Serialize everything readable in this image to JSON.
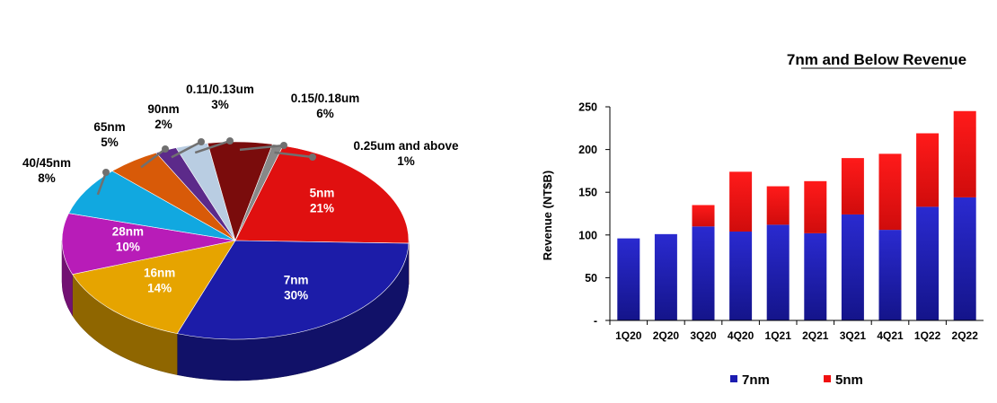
{
  "chart_data": [
    {
      "type": "pie",
      "slices": [
        {
          "label": "5nm",
          "value": 21,
          "value_label": "21%",
          "color": "#e01010"
        },
        {
          "label": "7nm",
          "value": 30,
          "value_label": "30%",
          "color": "#1c1ca8"
        },
        {
          "label": "16nm",
          "value": 14,
          "value_label": "14%",
          "color": "#e6a400"
        },
        {
          "label": "28nm",
          "value": 10,
          "value_label": "10%",
          "color": "#b81cb8"
        },
        {
          "label": "40/45nm",
          "value": 8,
          "value_label": "8%",
          "color": "#11a8e0"
        },
        {
          "label": "65nm",
          "value": 5,
          "value_label": "5%",
          "color": "#d85a08"
        },
        {
          "label": "90nm",
          "value": 2,
          "value_label": "2%",
          "color": "#5c2a8a"
        },
        {
          "label": "0.11/0.13um",
          "value": 3,
          "value_label": "3%",
          "color": "#b9cde2"
        },
        {
          "label": "0.15/0.18um",
          "value": 6,
          "value_label": "6%",
          "color": "#7a0c0c"
        },
        {
          "label": "0.25um and above",
          "value": 1,
          "value_label": "1%",
          "color": "#888888"
        }
      ]
    },
    {
      "type": "bar",
      "stacked": true,
      "title": "7nm and Below Revenue",
      "ylabel": "Revenue (NT$B)",
      "xlabel": "",
      "ylim": [
        0,
        250
      ],
      "yticks": [
        0,
        50,
        100,
        150,
        200,
        250
      ],
      "ytick_labels": [
        "-",
        "50",
        "100",
        "150",
        "200",
        "250"
      ],
      "categories": [
        "1Q20",
        "2Q20",
        "3Q20",
        "4Q20",
        "1Q21",
        "2Q21",
        "3Q21",
        "4Q21",
        "1Q22",
        "2Q22"
      ],
      "series": [
        {
          "name": "7nm",
          "color": "#1c1cb0",
          "values": [
            96,
            101,
            110,
            104,
            112,
            102,
            124,
            106,
            133,
            144
          ]
        },
        {
          "name": "5nm",
          "color": "#f01010",
          "values": [
            0,
            0,
            25,
            70,
            45,
            61,
            66,
            89,
            86,
            101
          ]
        }
      ],
      "legend_position": "bottom"
    }
  ]
}
